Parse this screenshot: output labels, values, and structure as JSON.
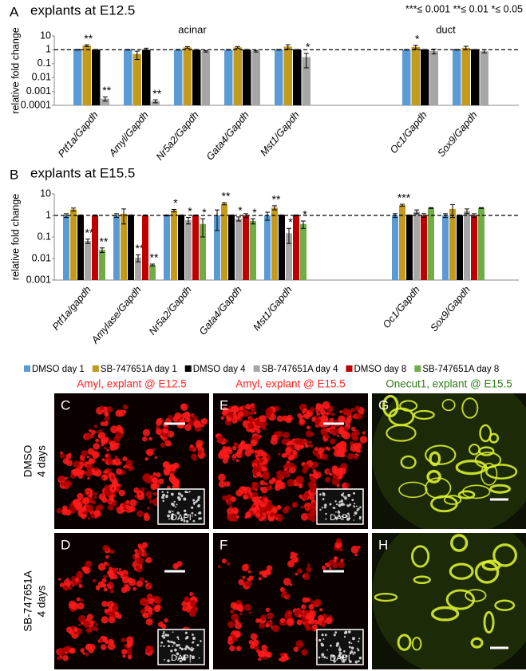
{
  "chart_data": [
    {
      "type": "bar",
      "panel": "A",
      "title": "explants at E12.5",
      "y_label": "relative fold change",
      "significance_note": "***≤ 0.001 **≤ 0.01  *≤ 0.05",
      "group_labels": [
        "acinar",
        "duct"
      ],
      "log_scale": true,
      "reference_line": 1,
      "categories": [
        "Ptf1a/Gapdh",
        "Amyl/Gapdh",
        "Nr5a2/Gapdh",
        "Gata4/Gapdh",
        "Mst1/Gapdh",
        "Oc1/Gapdh",
        "Sox9/Gapdh"
      ],
      "ylim": [
        0.0001,
        10
      ],
      "yticks": [
        0.0001,
        0.001,
        0.01,
        0.1,
        1,
        10
      ],
      "series": [
        {
          "color": "#5b9bd5",
          "values": [
            1,
            1,
            1,
            1,
            1,
            1,
            1
          ],
          "errors": [
            0.05,
            0.05,
            0.05,
            0.05,
            0.05,
            0.05,
            0.05
          ],
          "stars": [
            null,
            null,
            null,
            null,
            null,
            null,
            null
          ]
        },
        {
          "color": "#c49a1a",
          "values": [
            2,
            0.5,
            1.5,
            1.5,
            1.7,
            1.6,
            1.4
          ],
          "errors": [
            0.3,
            0.3,
            0.2,
            0.2,
            0.6,
            0.5,
            0.4
          ],
          "stars": [
            "**",
            null,
            null,
            null,
            null,
            "*",
            null
          ]
        },
        {
          "color": "#000000",
          "values": [
            1,
            1,
            1,
            1,
            1,
            1,
            1
          ],
          "errors": [
            0.05,
            0.3,
            0.05,
            0.05,
            0.05,
            0.05,
            0.05
          ],
          "stars": [
            null,
            null,
            null,
            null,
            null,
            null,
            null
          ]
        },
        {
          "color": "#a6a6a6",
          "values": [
            0.0003,
            0.0002,
            0.8,
            0.8,
            0.3,
            0.8,
            0.8
          ],
          "errors": [
            0.0001,
            5e-05,
            0.1,
            0.1,
            0.25,
            0.3,
            0.2
          ],
          "stars": [
            "**",
            "**",
            null,
            null,
            "*",
            null,
            null
          ]
        }
      ]
    },
    {
      "type": "bar",
      "panel": "B",
      "title": "explants at E15.5",
      "y_label": "relative fold change",
      "log_scale": true,
      "reference_line": 1,
      "legend": "bottom",
      "categories": [
        "Ptf1a/gapdh",
        "Amylase/Gapdh",
        "Nr5a2/Gapdh",
        "Gata4/Gapdh",
        "Mst1/Gapdh",
        "Oc1/Gapdh",
        "Sox9/Gapdh"
      ],
      "ylim": [
        0.001,
        10
      ],
      "yticks": [
        0.001,
        0.01,
        0.1,
        1,
        10
      ],
      "series": [
        {
          "name": "DMSO day 1",
          "color": "#5b9bd5",
          "values": [
            1,
            1,
            1,
            1,
            1,
            1,
            1
          ],
          "errors": [
            0.2,
            0.2,
            0.05,
            0.8,
            0.4,
            0.2,
            0.2
          ],
          "stars": [
            null,
            null,
            null,
            null,
            null,
            null,
            null
          ]
        },
        {
          "name": "SB-747651A day 1",
          "color": "#c49a1a",
          "values": [
            1.9,
            1.2,
            1.7,
            3.5,
            2.3,
            3,
            2
          ],
          "errors": [
            0.3,
            0.8,
            0.2,
            0.4,
            0.5,
            0.3,
            1.2
          ],
          "stars": [
            null,
            null,
            "*",
            "**",
            "**",
            "***",
            null
          ]
        },
        {
          "name": "DMSO day 4",
          "color": "#000000",
          "values": [
            1,
            1,
            1,
            1,
            1,
            1,
            1
          ],
          "errors": [
            0.05,
            0.05,
            0.05,
            0.05,
            0.05,
            0.05,
            0.05
          ],
          "stars": [
            null,
            null,
            null,
            null,
            null,
            null,
            null
          ]
        },
        {
          "name": "SB-747651A day 4",
          "color": "#a6a6a6",
          "values": [
            0.065,
            0.011,
            0.6,
            0.7,
            0.15,
            1.5,
            1.6
          ],
          "errors": [
            0.015,
            0.004,
            0.2,
            0.15,
            0.1,
            0.3,
            0.4
          ],
          "stars": [
            "**",
            "**",
            "*",
            "*",
            "*",
            null,
            null
          ]
        },
        {
          "name": "DMSO day 8",
          "color": "#c00000",
          "values": [
            1,
            1,
            1,
            1,
            1,
            1,
            1
          ],
          "errors": [
            0.05,
            0.05,
            0.05,
            0.2,
            0.05,
            0.2,
            0.2
          ],
          "stars": [
            null,
            null,
            null,
            null,
            null,
            null,
            null
          ]
        },
        {
          "name": "SB-747651A day 8",
          "color": "#70ad47",
          "values": [
            0.025,
            0.005,
            0.4,
            0.55,
            0.4,
            2.2,
            2.2
          ],
          "errors": [
            0.006,
            0.0005,
            0.3,
            0.15,
            0.15,
            0.1,
            0.1
          ],
          "stars": [
            "**",
            "**",
            "*",
            "*",
            "*",
            null,
            null
          ]
        }
      ]
    }
  ],
  "images": {
    "columns": [
      "Amyl, explant @ E12.5",
      "Amyl,  explant @ E15.5",
      "Onecut1, explant @ E15.5"
    ],
    "rows": [
      [
        "DMSO",
        "4 days"
      ],
      [
        "SB-747651A",
        "4 days"
      ]
    ],
    "panels": [
      [
        "C",
        "E",
        "G"
      ],
      [
        "D",
        "F",
        "H"
      ]
    ],
    "inset": "DAPI"
  }
}
